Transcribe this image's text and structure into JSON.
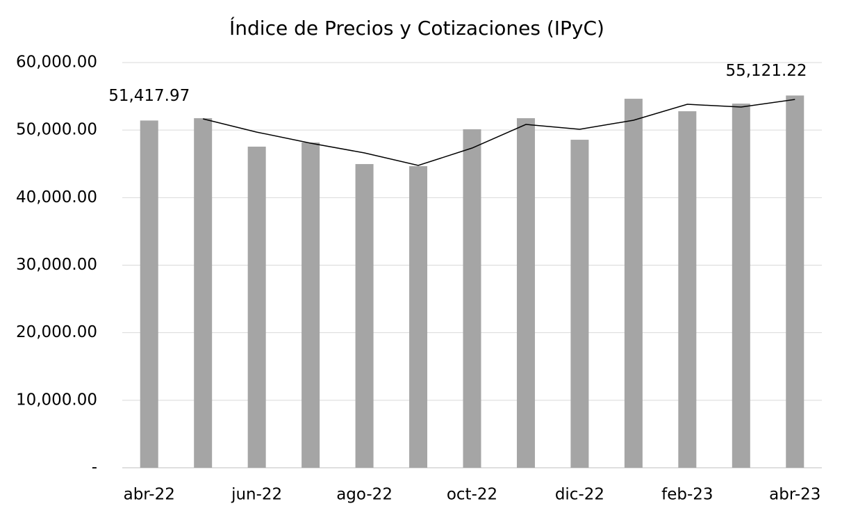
{
  "chart_data": {
    "type": "bar",
    "title": "Índice de Precios y Cotizaciones (IPyC)",
    "categories": [
      "abr-22",
      null,
      "jun-22",
      null,
      "ago-22",
      null,
      "oct-22",
      null,
      "dic-22",
      null,
      "feb-23",
      null,
      "abr-23"
    ],
    "series": [
      {
        "type": "bar",
        "color": "#a5a5a5",
        "values": [
          51417.97,
          51760,
          47550,
          48160,
          44970,
          44660,
          50120,
          51760,
          48570,
          54640,
          52790,
          53920,
          55121.22
        ],
        "value_labels": [
          "51,417.97",
          null,
          null,
          null,
          null,
          null,
          null,
          null,
          null,
          null,
          null,
          null,
          "55,121.22"
        ]
      },
      {
        "type": "line",
        "color": "#000000",
        "values": [
          null,
          51660,
          49700,
          48060,
          46620,
          44770,
          47340,
          50840,
          50120,
          51460,
          53820,
          53410,
          54540
        ]
      }
    ],
    "ylim": [
      0,
      60000
    ],
    "yticks": [
      {
        "value": 0,
        "label": "-"
      },
      {
        "value": 10000,
        "label": "10,000.00"
      },
      {
        "value": 20000,
        "label": "20,000.00"
      },
      {
        "value": 30000,
        "label": "30,000.00"
      },
      {
        "value": 40000,
        "label": "40,000.00"
      },
      {
        "value": 50000,
        "label": "50,000.00"
      },
      {
        "value": 60000,
        "label": "60,000.00"
      }
    ],
    "grid": true
  }
}
